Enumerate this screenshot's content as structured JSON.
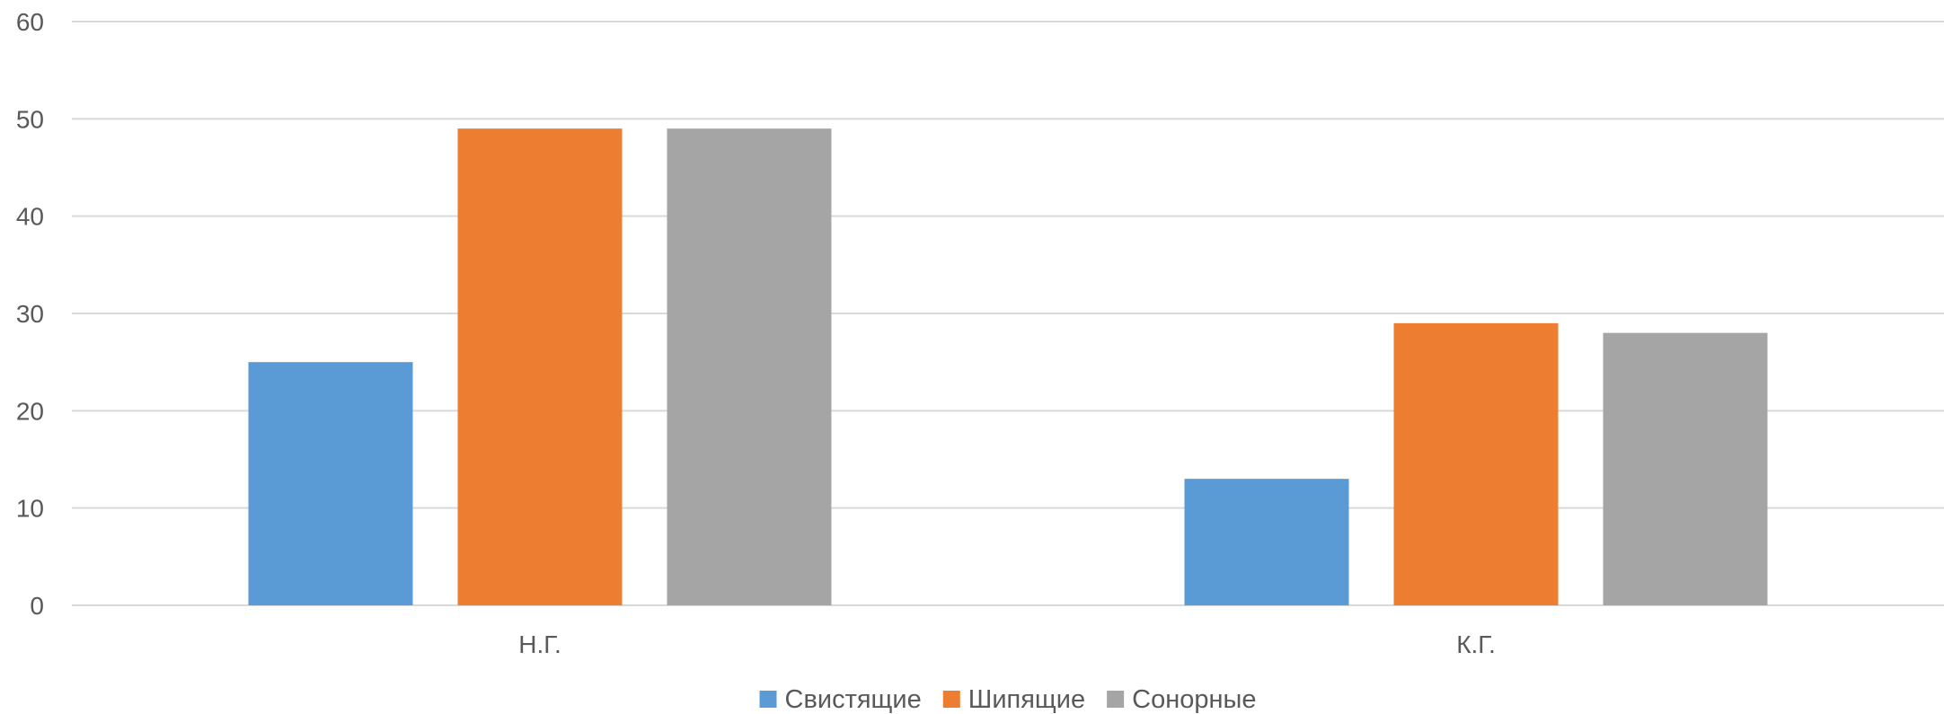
{
  "chart_data": {
    "type": "bar",
    "categories": [
      "Н.Г.",
      "К.Г."
    ],
    "series": [
      {
        "name": "Свистящие",
        "values": [
          25,
          13
        ],
        "color": "#5b9bd5"
      },
      {
        "name": "Шипящие",
        "values": [
          49,
          29
        ],
        "color": "#ed7d31"
      },
      {
        "name": "Сонорные",
        "values": [
          49,
          28
        ],
        "color": "#a5a5a5"
      }
    ],
    "ylim": [
      0,
      60
    ],
    "yticks": [
      0,
      10,
      20,
      30,
      40,
      50,
      60
    ],
    "grid": true,
    "legend_position": "bottom",
    "title": "",
    "xlabel": "",
    "ylabel": ""
  }
}
